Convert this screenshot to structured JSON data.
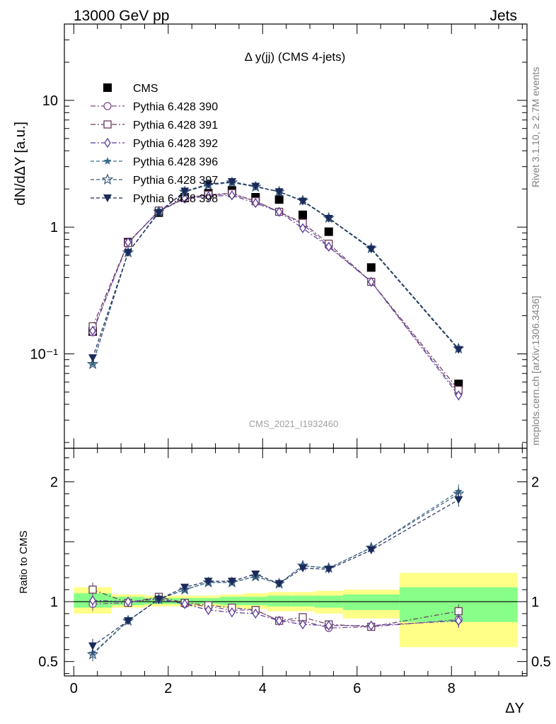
{
  "header": {
    "left": "13000 GeV pp",
    "right": "Jets"
  },
  "plot_title": "Δ y(jj) (CMS 4-jets)",
  "watermark": "CMS_2021_I1932460",
  "side_text": {
    "rivet": "Rivet 3.1.10, ≥ 2.7M events",
    "mcplots": "mcplots.cern.ch [arXiv:1306.3436]"
  },
  "colors": {
    "data": "#000000",
    "p390": "#7b4a8c",
    "p391": "#6b3a5a",
    "p392": "#5a3a9a",
    "p396": "#3a6a8a",
    "p397": "#3a5a7a",
    "p398": "#1a2a5a",
    "band_syst": "#ffff88",
    "band_stat": "#88ff88"
  },
  "chart_data": [
    {
      "type": "scatter",
      "title": "Δ y(jj) (CMS 4-jets)",
      "ylabel": "dN/dΔY [a.u.]",
      "xlabel": "",
      "yscale": "log",
      "xlim": [
        -0.2,
        9.6
      ],
      "ylim": [
        0.018,
        40
      ],
      "y_tick_labels": [
        "10⁻¹",
        "1",
        "10"
      ],
      "legend_position": "top-left",
      "x": [
        0.4,
        1.15,
        1.8,
        2.35,
        2.85,
        3.35,
        3.85,
        4.35,
        4.85,
        5.4,
        6.3,
        8.15
      ],
      "series": [
        {
          "name": "CMS",
          "marker": "square-filled",
          "values": [
            0.15,
            0.76,
            1.3,
            1.72,
            1.85,
            1.95,
            1.72,
            1.65,
            1.25,
            0.92,
            0.48,
            0.058
          ]
        },
        {
          "name": "Pythia 6.428 390",
          "marker": "circle-open",
          "dash": "dashdot",
          "values": [
            0.148,
            0.75,
            1.34,
            1.68,
            1.8,
            1.82,
            1.6,
            1.32,
            1.05,
            0.71,
            0.37,
            0.049
          ]
        },
        {
          "name": "Pythia 6.428 391",
          "marker": "square-open",
          "dash": "dashdot",
          "values": [
            0.165,
            0.75,
            1.35,
            1.7,
            1.8,
            1.85,
            1.6,
            1.32,
            1.08,
            0.74,
            0.37,
            0.052
          ]
        },
        {
          "name": "Pythia 6.428 392",
          "marker": "diamond-open",
          "dash": "dashdot",
          "values": [
            0.152,
            0.76,
            1.33,
            1.68,
            1.75,
            1.78,
            1.55,
            1.32,
            0.98,
            0.7,
            0.37,
            0.047
          ]
        },
        {
          "name": "Pythia 6.428 396",
          "marker": "star-filled",
          "dash": "dashed",
          "values": [
            0.084,
            0.63,
            1.32,
            1.9,
            2.15,
            2.25,
            2.08,
            1.9,
            1.62,
            1.18,
            0.68,
            0.11
          ]
        },
        {
          "name": "Pythia 6.428 397",
          "marker": "star-open",
          "dash": "dashed",
          "values": [
            0.083,
            0.63,
            1.32,
            1.9,
            2.15,
            2.25,
            2.08,
            1.9,
            1.62,
            1.18,
            0.68,
            0.11
          ]
        },
        {
          "name": "Pythia 6.428 398",
          "marker": "triangle-down-filled",
          "dash": "dashed",
          "values": [
            0.093,
            0.63,
            1.3,
            1.92,
            2.18,
            2.28,
            2.1,
            1.9,
            1.6,
            1.17,
            0.67,
            0.108
          ]
        }
      ]
    },
    {
      "type": "scatter",
      "title": "",
      "ylabel": "Ratio to CMS",
      "xlabel": "ΔY",
      "xlim": [
        -0.2,
        9.6
      ],
      "ylim": [
        0.38,
        2.28
      ],
      "y_tick_values": [
        0.5,
        1,
        2
      ],
      "y_tick_labels": [
        "0.5",
        "1",
        "2"
      ],
      "x_tick_values": [
        0,
        2,
        4,
        6,
        8
      ],
      "x_tick_labels": [
        "0",
        "2",
        "4",
        "6",
        "8"
      ],
      "bands": [
        {
          "xlo": 0.0,
          "xhi": 0.8,
          "stat": [
            0.95,
            1.07
          ],
          "syst": [
            0.9,
            1.12
          ]
        },
        {
          "xlo": 0.8,
          "xhi": 1.5,
          "stat": [
            0.97,
            1.04
          ],
          "syst": [
            0.95,
            1.06
          ]
        },
        {
          "xlo": 1.5,
          "xhi": 2.1,
          "stat": [
            0.98,
            1.03
          ],
          "syst": [
            0.96,
            1.05
          ]
        },
        {
          "xlo": 2.1,
          "xhi": 2.6,
          "stat": [
            0.98,
            1.03
          ],
          "syst": [
            0.96,
            1.05
          ]
        },
        {
          "xlo": 2.6,
          "xhi": 3.1,
          "stat": [
            0.98,
            1.03
          ],
          "syst": [
            0.96,
            1.05
          ]
        },
        {
          "xlo": 3.1,
          "xhi": 3.6,
          "stat": [
            0.97,
            1.04
          ],
          "syst": [
            0.95,
            1.06
          ]
        },
        {
          "xlo": 3.6,
          "xhi": 4.1,
          "stat": [
            0.97,
            1.04
          ],
          "syst": [
            0.94,
            1.07
          ]
        },
        {
          "xlo": 4.1,
          "xhi": 4.6,
          "stat": [
            0.96,
            1.05
          ],
          "syst": [
            0.92,
            1.08
          ]
        },
        {
          "xlo": 4.6,
          "xhi": 5.1,
          "stat": [
            0.96,
            1.05
          ],
          "syst": [
            0.92,
            1.08
          ]
        },
        {
          "xlo": 5.1,
          "xhi": 5.7,
          "stat": [
            0.95,
            1.05
          ],
          "syst": [
            0.9,
            1.09
          ]
        },
        {
          "xlo": 5.7,
          "xhi": 6.9,
          "stat": [
            0.93,
            1.06
          ],
          "syst": [
            0.86,
            1.1
          ]
        },
        {
          "xlo": 6.9,
          "xhi": 9.4,
          "stat": [
            0.83,
            1.12
          ],
          "syst": [
            0.62,
            1.24
          ]
        }
      ],
      "x": [
        0.4,
        1.15,
        1.8,
        2.35,
        2.85,
        3.35,
        3.85,
        4.35,
        4.85,
        5.4,
        6.3,
        8.15
      ],
      "series": [
        {
          "name": "Pythia 6.428 390",
          "marker": "circle-open",
          "dash": "dashdot",
          "values": [
            0.98,
            0.99,
            1.03,
            0.98,
            0.96,
            0.93,
            0.93,
            0.84,
            0.84,
            0.78,
            0.79,
            0.85
          ]
        },
        {
          "name": "Pythia 6.428 391",
          "marker": "square-open",
          "dash": "dashdot",
          "values": [
            1.1,
            0.99,
            1.04,
            0.99,
            0.97,
            0.95,
            0.93,
            0.84,
            0.87,
            0.81,
            0.79,
            0.92
          ]
        },
        {
          "name": "Pythia 6.428 392",
          "marker": "diamond-open",
          "dash": "dashdot",
          "values": [
            1.01,
            1.0,
            1.02,
            0.98,
            0.93,
            0.91,
            0.9,
            0.84,
            0.81,
            0.8,
            0.8,
            0.84
          ]
        },
        {
          "name": "Pythia 6.428 396",
          "marker": "star-filled",
          "dash": "dashed",
          "values": [
            0.57,
            0.84,
            1.02,
            1.1,
            1.16,
            1.16,
            1.21,
            1.15,
            1.3,
            1.28,
            1.45,
            1.92
          ]
        },
        {
          "name": "Pythia 6.428 397",
          "marker": "star-open",
          "dash": "dashed",
          "values": [
            0.56,
            0.84,
            1.02,
            1.1,
            1.16,
            1.16,
            1.21,
            1.15,
            1.3,
            1.28,
            1.45,
            1.9
          ]
        },
        {
          "name": "Pythia 6.428 398",
          "marker": "triangle-down-filled",
          "dash": "dashed",
          "values": [
            0.63,
            0.84,
            1.02,
            1.12,
            1.17,
            1.17,
            1.23,
            1.15,
            1.28,
            1.27,
            1.43,
            1.85
          ]
        }
      ]
    }
  ]
}
